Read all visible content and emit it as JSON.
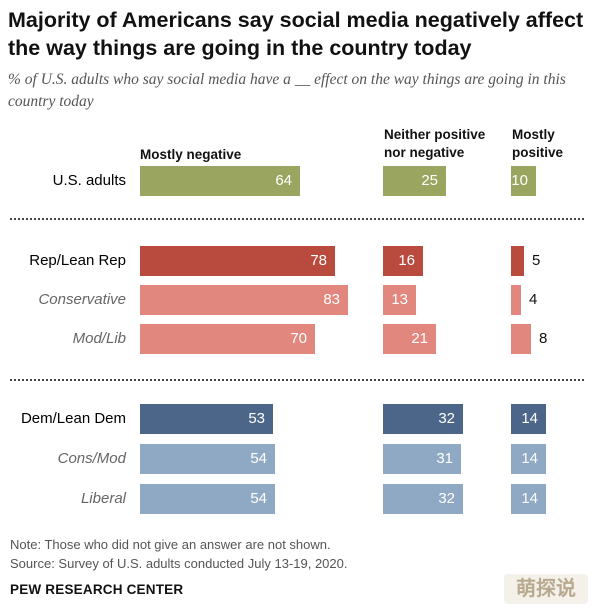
{
  "header": {
    "title": "Majority of Americans say social media negatively affect the way things are going in the country today",
    "subtitle": "% of U.S. adults who say social media have a __ effect on the way things are going in this country today"
  },
  "chart_data": {
    "type": "bar",
    "orientation": "horizontal",
    "categories": [
      "U.S. adults",
      "Rep/Lean Rep",
      "Conservative",
      "Mod/Lib",
      "Dem/Lean Dem",
      "Cons/Mod",
      "Liberal"
    ],
    "series": [
      {
        "name": "Mostly negative",
        "values": [
          64,
          78,
          83,
          70,
          53,
          54,
          54
        ]
      },
      {
        "name": "Neither positive nor negative",
        "values": [
          25,
          16,
          13,
          21,
          32,
          31,
          32
        ]
      },
      {
        "name": "Mostly positive",
        "values": [
          10,
          5,
          4,
          8,
          14,
          14,
          14
        ]
      }
    ],
    "colors": {
      "overall": "#9aa55f",
      "rep": "#b84a3e",
      "rep_sub": "#e1877e",
      "dem": "#4b6688",
      "dem_sub": "#8fa9c4"
    },
    "legend": "column headers above bars",
    "grid": false
  },
  "notes": {
    "note": "Note: Those who did not give an answer are not shown.",
    "source": "Source: Survey of U.S. adults conducted July 13-19, 2020."
  },
  "brand": "PEW RESEARCH CENTER",
  "watermark": "萌探说"
}
